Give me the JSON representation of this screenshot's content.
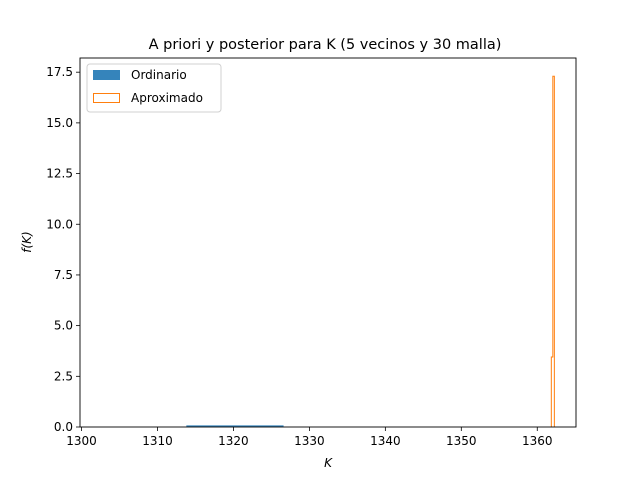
{
  "chart_data": {
    "type": "histogram",
    "title": "A priori y posterior para K (5 vecinos y 30 malla)",
    "xlabel": "K",
    "ylabel": "f(K)",
    "xlim": [
      1299.8,
      1365.1
    ],
    "ylim": [
      0,
      18.2
    ],
    "xticks": [
      1300,
      1310,
      1320,
      1330,
      1340,
      1350,
      1360
    ],
    "yticks": [
      0.0,
      2.5,
      5.0,
      7.5,
      10.0,
      12.5,
      15.0,
      17.5
    ],
    "xtick_labels": [
      "1300",
      "1310",
      "1320",
      "1330",
      "1340",
      "1350",
      "1360"
    ],
    "ytick_labels": [
      "0.0",
      "2.5",
      "5.0",
      "7.5",
      "10.0",
      "12.5",
      "15.0",
      "17.5"
    ],
    "legend_position": "top-left",
    "series": [
      {
        "name": "Ordinario",
        "style": "filled",
        "color": "#1f77b4",
        "bins": [
          [
            1313.8,
            1326.6,
            0.08
          ]
        ]
      },
      {
        "name": "Aproximado",
        "style": "step",
        "color": "#ff7f0e",
        "bins": [
          [
            1361.85,
            1362.05,
            3.45
          ],
          [
            1362.05,
            1362.25,
            17.3
          ]
        ]
      }
    ]
  }
}
